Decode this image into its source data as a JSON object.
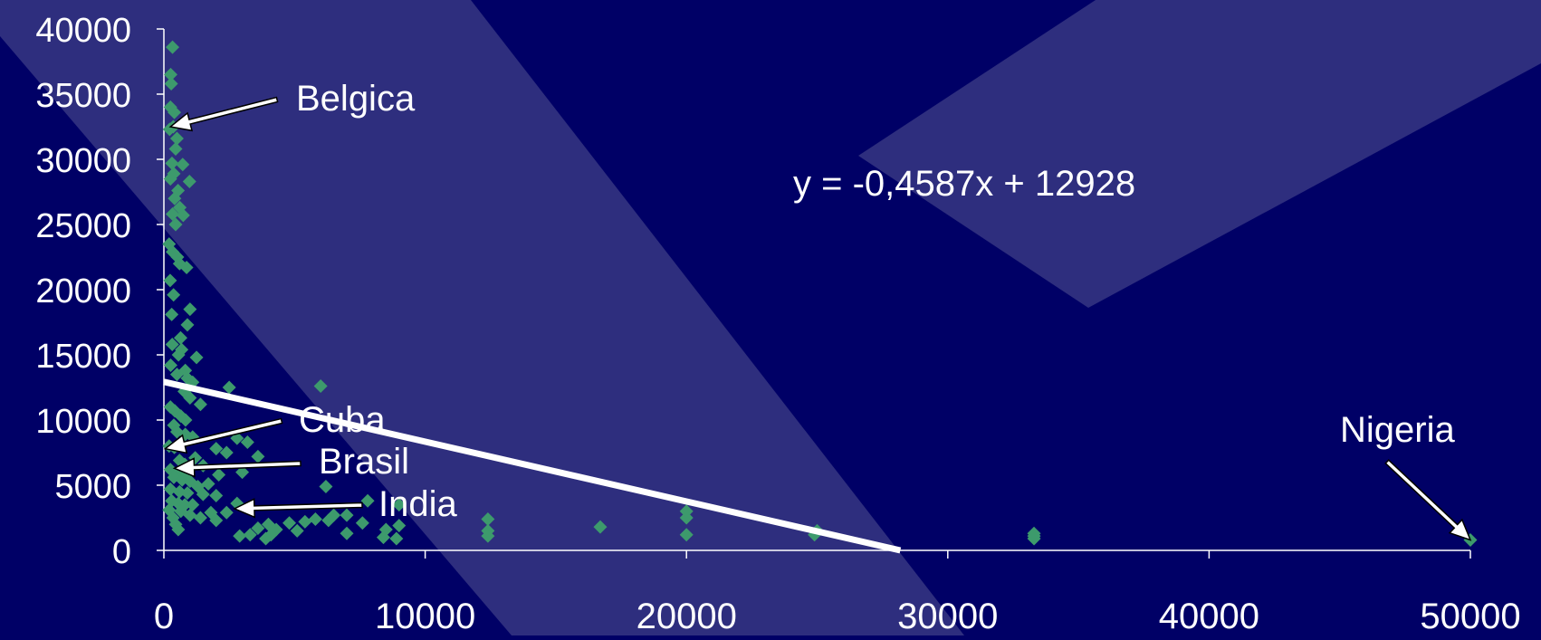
{
  "chart_data": {
    "type": "scatter",
    "title": "",
    "xlabel": "",
    "ylabel": "",
    "xlim": [
      0,
      50000
    ],
    "ylim": [
      0,
      40000
    ],
    "x_ticks": [
      "0",
      "10000",
      "20000",
      "30000",
      "40000",
      "50000"
    ],
    "y_ticks": [
      "0",
      "5000",
      "10000",
      "15000",
      "20000",
      "25000",
      "30000",
      "35000",
      "40000"
    ],
    "grid": false,
    "legend": "none",
    "colors": {
      "background": "#000066",
      "band": "#2e2e7e",
      "points": "#3d9a6c",
      "trendline": "#ffffff",
      "axis": "#ffffff"
    },
    "trendline": {
      "equation": "y = -0,4587x + 12928",
      "slope": -0.4587,
      "intercept": 12928
    },
    "annotations": [
      {
        "label": "Belgica",
        "x": 250,
        "y": 32500
      },
      {
        "label": "Cuba",
        "x": 50,
        "y": 7800
      },
      {
        "label": "Brasil",
        "x": 400,
        "y": 6300
      },
      {
        "label": "India",
        "x": 2700,
        "y": 3200
      },
      {
        "label": "Nigeria",
        "x": 50000,
        "y": 800
      }
    ],
    "points": [
      [
        330,
        38600
      ],
      [
        260,
        36500
      ],
      [
        280,
        35800
      ],
      [
        250,
        34000
      ],
      [
        400,
        33600
      ],
      [
        360,
        32500
      ],
      [
        220,
        32300
      ],
      [
        500,
        31600
      ],
      [
        450,
        30800
      ],
      [
        310,
        29700
      ],
      [
        720,
        29600
      ],
      [
        380,
        28900
      ],
      [
        250,
        28500
      ],
      [
        980,
        28300
      ],
      [
        540,
        27600
      ],
      [
        410,
        27000
      ],
      [
        610,
        26300
      ],
      [
        330,
        25800
      ],
      [
        740,
        25700
      ],
      [
        450,
        25000
      ],
      [
        200,
        23500
      ],
      [
        330,
        22900
      ],
      [
        520,
        22500
      ],
      [
        600,
        22000
      ],
      [
        870,
        21700
      ],
      [
        240,
        20700
      ],
      [
        370,
        19600
      ],
      [
        1000,
        18500
      ],
      [
        300,
        18100
      ],
      [
        900,
        17300
      ],
      [
        640,
        16300
      ],
      [
        320,
        15800
      ],
      [
        680,
        15400
      ],
      [
        560,
        15000
      ],
      [
        1250,
        14800
      ],
      [
        260,
        14200
      ],
      [
        820,
        13800
      ],
      [
        500,
        13500
      ],
      [
        900,
        13200
      ],
      [
        1100,
        12900
      ],
      [
        2500,
        12500
      ],
      [
        6000,
        12600
      ],
      [
        780,
        12200
      ],
      [
        1000,
        11700
      ],
      [
        1400,
        11200
      ],
      [
        250,
        11000
      ],
      [
        420,
        10700
      ],
      [
        650,
        10300
      ],
      [
        830,
        10000
      ],
      [
        380,
        9600
      ],
      [
        500,
        9100
      ],
      [
        820,
        8900
      ],
      [
        1100,
        8700
      ],
      [
        2800,
        8600
      ],
      [
        3200,
        8300
      ],
      [
        200,
        8000
      ],
      [
        400,
        7900
      ],
      [
        2000,
        7800
      ],
      [
        2400,
        7500
      ],
      [
        3600,
        7200
      ],
      [
        1200,
        7100
      ],
      [
        600,
        6900
      ],
      [
        800,
        6600
      ],
      [
        1500,
        6500
      ],
      [
        250,
        6200
      ],
      [
        550,
        6000
      ],
      [
        900,
        5900
      ],
      [
        2100,
        5800
      ],
      [
        3000,
        6000
      ],
      [
        380,
        5600
      ],
      [
        700,
        5400
      ],
      [
        1000,
        5300
      ],
      [
        1700,
        5100
      ],
      [
        6200,
        4900
      ],
      [
        1300,
        4900
      ],
      [
        250,
        4700
      ],
      [
        600,
        4500
      ],
      [
        900,
        4400
      ],
      [
        1500,
        4300
      ],
      [
        2000,
        4200
      ],
      [
        300,
        3800
      ],
      [
        550,
        3600
      ],
      [
        800,
        3500
      ],
      [
        1100,
        3500
      ],
      [
        2800,
        3600
      ],
      [
        7800,
        3800
      ],
      [
        9000,
        3500
      ],
      [
        200,
        3100
      ],
      [
        650,
        3000
      ],
      [
        1800,
        2900
      ],
      [
        2400,
        2900
      ],
      [
        1000,
        2700
      ],
      [
        6500,
        2700
      ],
      [
        7000,
        2700
      ],
      [
        350,
        2500
      ],
      [
        1400,
        2500
      ],
      [
        2000,
        2300
      ],
      [
        5800,
        2400
      ],
      [
        6300,
        2300
      ],
      [
        12400,
        2400
      ],
      [
        20000,
        2500
      ],
      [
        20000,
        3000
      ],
      [
        450,
        2000
      ],
      [
        4000,
        2000
      ],
      [
        4800,
        2100
      ],
      [
        5400,
        2200
      ],
      [
        7600,
        2100
      ],
      [
        16700,
        1800
      ],
      [
        9000,
        1900
      ],
      [
        550,
        1600
      ],
      [
        3600,
        1700
      ],
      [
        4300,
        1600
      ],
      [
        5100,
        1500
      ],
      [
        8500,
        1600
      ],
      [
        12400,
        1500
      ],
      [
        25000,
        1500
      ],
      [
        33300,
        1300
      ],
      [
        24900,
        1200
      ],
      [
        2900,
        1100
      ],
      [
        3300,
        1200
      ],
      [
        4100,
        1200
      ],
      [
        7000,
        1300
      ],
      [
        8400,
        1000
      ],
      [
        12400,
        1100
      ],
      [
        20000,
        1200
      ],
      [
        33300,
        900
      ],
      [
        3900,
        900
      ],
      [
        8900,
        900
      ],
      [
        33300,
        1100
      ],
      [
        50000,
        800
      ]
    ]
  }
}
